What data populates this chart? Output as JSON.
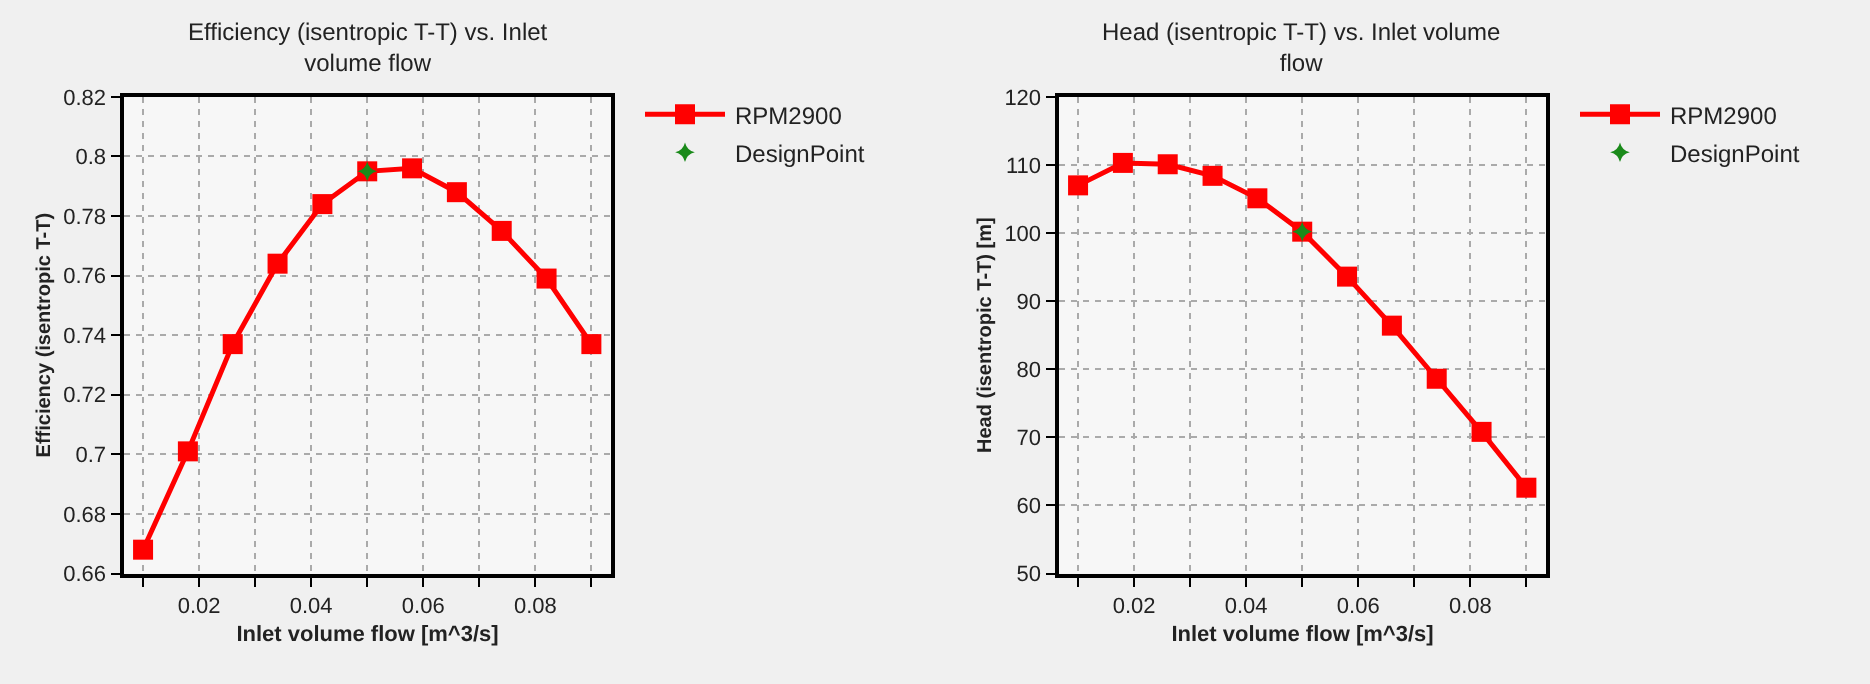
{
  "chart_data": [
    {
      "type": "line",
      "title": "Efficiency (isentropic T-T) vs. Inlet volume flow",
      "xlabel": "Inlet volume flow [m^3/s]",
      "ylabel": "Efficiency (isentropic T-T)",
      "x": [
        0.01,
        0.018,
        0.026,
        0.034,
        0.042,
        0.05,
        0.058,
        0.066,
        0.074,
        0.082,
        0.09
      ],
      "series": [
        {
          "name": "RPM2900",
          "color": "#ff0000",
          "marker": "square",
          "line_style": "solid",
          "values": [
            0.668,
            0.701,
            0.737,
            0.764,
            0.784,
            0.795,
            0.796,
            0.788,
            0.775,
            0.759,
            0.737
          ]
        },
        {
          "name": "DesignPoint",
          "type": "scatter",
          "color": "#1a8a1a",
          "marker": "star",
          "x": [
            0.05
          ],
          "values": [
            0.795
          ]
        }
      ],
      "xlim": [
        0.0066,
        0.0935
      ],
      "xticks": [
        {
          "value": 0.01,
          "label": null
        },
        0.02,
        {
          "value": 0.03,
          "label": null
        },
        0.04,
        {
          "value": 0.05,
          "label": null
        },
        0.06,
        {
          "value": 0.07,
          "label": null
        },
        0.08,
        {
          "value": 0.09,
          "label": null
        }
      ],
      "ylim": [
        0.66,
        0.82
      ],
      "yticks": [
        0.66,
        0.68,
        0.7,
        0.72,
        0.74,
        0.76,
        0.78,
        0.8,
        0.82
      ],
      "grid": true,
      "legend": "right"
    },
    {
      "type": "line",
      "title": "Head (isentropic T-T) vs. Inlet volume flow",
      "xlabel": "Inlet volume flow [m^3/s]",
      "ylabel": "Head (isentropic T-T) [m]",
      "x": [
        0.01,
        0.018,
        0.026,
        0.034,
        0.042,
        0.05,
        0.058,
        0.066,
        0.074,
        0.082,
        0.09
      ],
      "series": [
        {
          "name": "RPM2900",
          "color": "#ff0000",
          "marker": "square",
          "line_style": "solid",
          "values": [
            107.0,
            110.3,
            110.1,
            108.4,
            105.1,
            100.2,
            93.6,
            86.4,
            78.6,
            70.8,
            62.6
          ]
        },
        {
          "name": "DesignPoint",
          "type": "scatter",
          "color": "#1a8a1a",
          "marker": "star",
          "x": [
            0.05
          ],
          "values": [
            100.2
          ]
        }
      ],
      "xlim": [
        0.0066,
        0.0935
      ],
      "xticks": [
        {
          "value": 0.01,
          "label": null
        },
        0.02,
        {
          "value": 0.03,
          "label": null
        },
        0.04,
        {
          "value": 0.05,
          "label": null
        },
        0.06,
        {
          "value": 0.07,
          "label": null
        },
        0.08,
        {
          "value": 0.09,
          "label": null
        }
      ],
      "ylim": [
        50,
        120
      ],
      "yticks": [
        50,
        60,
        70,
        80,
        90,
        100,
        110,
        120
      ],
      "grid": true,
      "legend": "right"
    }
  ]
}
